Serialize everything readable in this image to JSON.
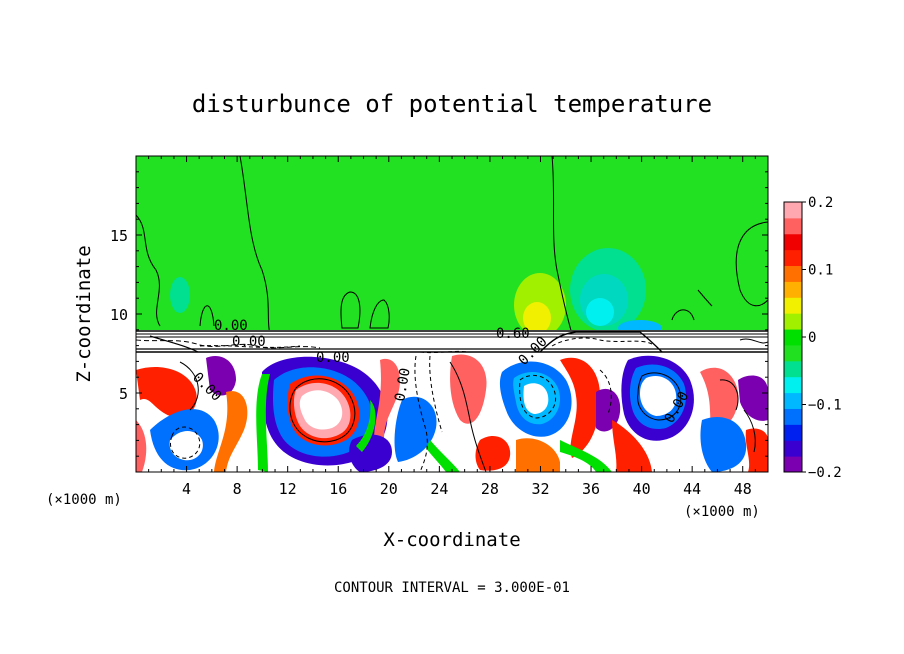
{
  "chart_data": {
    "type": "heatmap",
    "title": "disturbunce of potential temperature",
    "xlabel": "X-coordinate",
    "ylabel": "Z-coordinate",
    "x_unit_left": "(×1000 m)",
    "x_unit_right": "(×1000 m)",
    "xlim": [
      0,
      50
    ],
    "ylim": [
      0,
      20
    ],
    "xticks": [
      4,
      8,
      12,
      16,
      20,
      24,
      28,
      32,
      36,
      40,
      44,
      48
    ],
    "yticks": [
      5,
      10,
      15
    ],
    "colorbar": {
      "range": [
        -0.2,
        0.2
      ],
      "ticks": [
        0.2,
        0.1,
        0,
        -0.1,
        -0.2
      ],
      "tick_labels": [
        "0.2",
        "0.1",
        "0",
        "−0.1",
        "−0.2"
      ],
      "colors": [
        "#7a00b0",
        "#3a00d0",
        "#0020f0",
        "#0070ff",
        "#00b8ff",
        "#00f0f0",
        "#00e090",
        "#20e020",
        "#00e000",
        "#a0f000",
        "#f0f000",
        "#ffb000",
        "#ff7000",
        "#ff2000",
        "#f00000",
        "#ff6060",
        "#ffa8b0"
      ]
    },
    "contour_labels": [
      "0.00",
      "0.00",
      "0.00",
      "0.60",
      "0.00",
      "0.00",
      "0.00",
      "0.00"
    ],
    "annotation": "CONTOUR INTERVAL = 3.000E-01"
  }
}
